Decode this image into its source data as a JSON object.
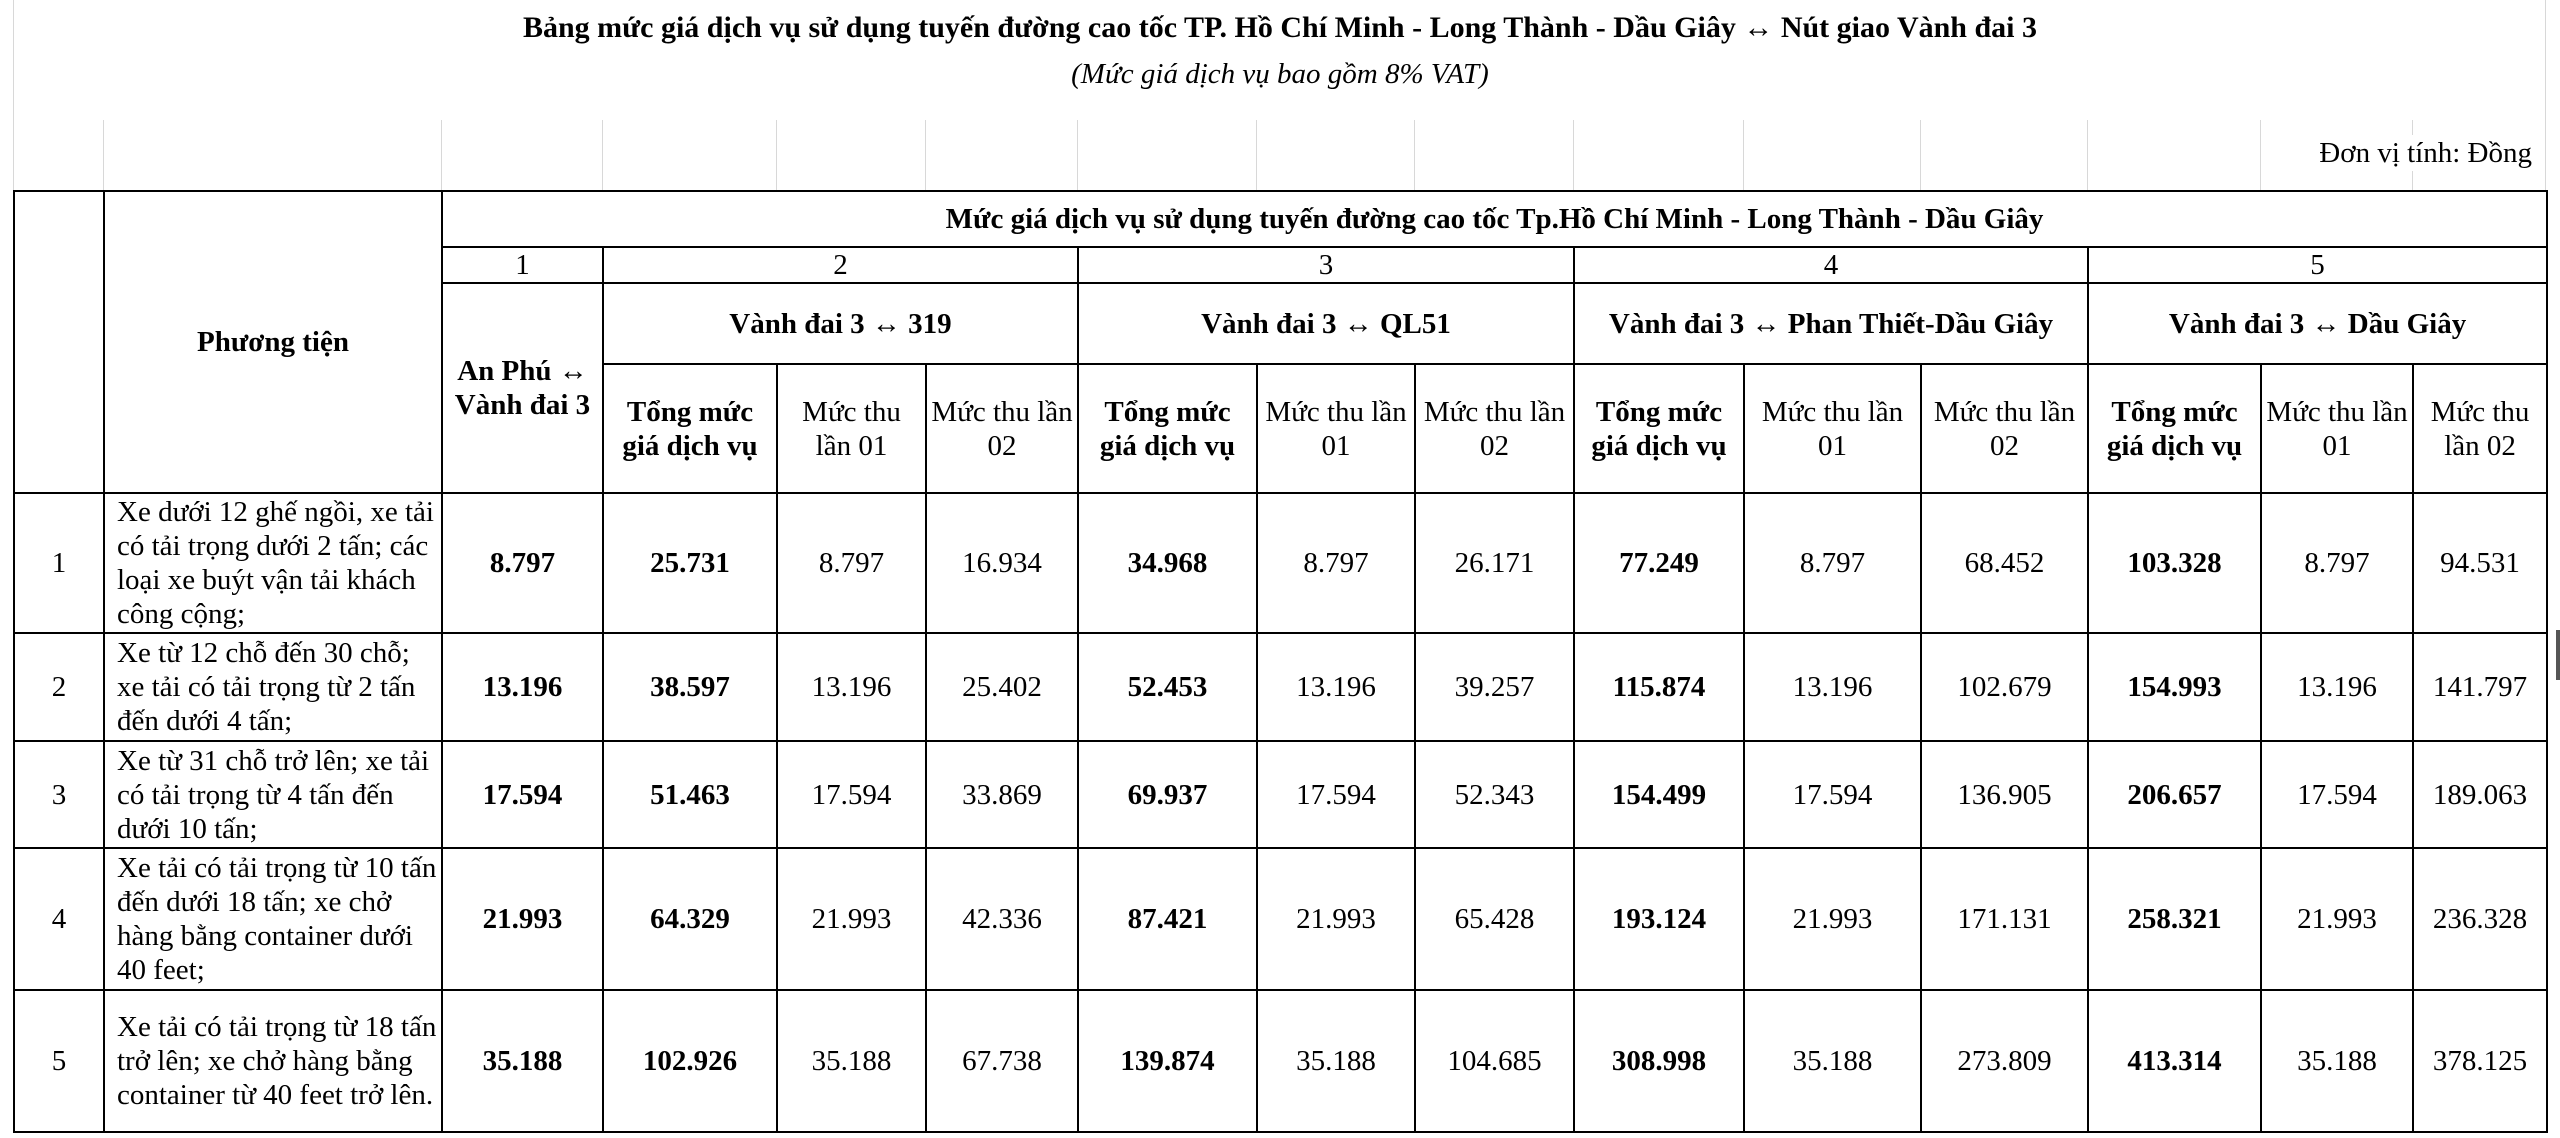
{
  "title": "Bảng mức giá dịch vụ sử dụng tuyến đường cao tốc TP. Hồ Chí Minh - Long Thành - Dầu Giây ↔ Nút giao Vành đai 3",
  "subtitle": "(Mức giá dịch vụ bao gồm 8% VAT)",
  "unit": "Đơn vị tính: Đồng",
  "table": {
    "vehicle_header": "Phương tiện",
    "group_header": "Mức giá dịch vụ sử dụng tuyến đường cao tốc Tp.Hồ Chí Minh - Long Thành - Dầu Giây",
    "section_numbers": [
      "1",
      "2",
      "3",
      "4",
      "5"
    ],
    "route1": "An Phú ↔ Vành đai 3",
    "routes": [
      "Vành đai 3 ↔ 319",
      "Vành đai 3 ↔ QL51",
      "Vành đai 3 ↔  Phan Thiết-Dầu Giây",
      "Vành đai 3 ↔ Dầu Giây"
    ],
    "sub_headers": {
      "total": "Tổng mức giá dịch vụ",
      "first": "Mức thu lần 01",
      "second": "Mức thu lần 02"
    },
    "rows": [
      {
        "no": "1",
        "vehicle": "Xe dưới 12 ghế ngồi, xe tải có tải trọng dưới 2 tấn; các loại xe buýt vận tải khách công cộng;",
        "values": [
          "8.797",
          "25.731",
          "8.797",
          "16.934",
          "34.968",
          "8.797",
          "26.171",
          "77.249",
          "8.797",
          "68.452",
          "103.328",
          "8.797",
          "94.531"
        ]
      },
      {
        "no": "2",
        "vehicle": "Xe từ 12 chỗ đến 30 chỗ; xe tải có tải trọng từ 2 tấn đến dưới 4 tấn;",
        "values": [
          "13.196",
          "38.597",
          "13.196",
          "25.402",
          "52.453",
          "13.196",
          "39.257",
          "115.874",
          "13.196",
          "102.679",
          "154.993",
          "13.196",
          "141.797"
        ]
      },
      {
        "no": "3",
        "vehicle": "Xe từ 31 chỗ trở lên; xe tải có tải trọng từ 4 tấn đến dưới 10 tấn;",
        "values": [
          "17.594",
          "51.463",
          "17.594",
          "33.869",
          "69.937",
          "17.594",
          "52.343",
          "154.499",
          "17.594",
          "136.905",
          "206.657",
          "17.594",
          "189.063"
        ]
      },
      {
        "no": "4",
        "vehicle": "Xe tải có tải trọng từ 10 tấn đến dưới 18 tấn; xe chở hàng bằng container dưới 40 feet;",
        "values": [
          "21.993",
          "64.329",
          "21.993",
          "42.336",
          "87.421",
          "21.993",
          "65.428",
          "193.124",
          "21.993",
          "171.131",
          "258.321",
          "21.993",
          "236.328"
        ]
      },
      {
        "no": "5",
        "vehicle": "Xe tải có tải trọng từ 18 tấn trở lên; xe chở hàng bằng container từ 40 feet trở lên.",
        "values": [
          "35.188",
          "102.926",
          "35.188",
          "67.738",
          "139.874",
          "35.188",
          "104.685",
          "308.998",
          "35.188",
          "273.809",
          "413.314",
          "35.188",
          "378.125"
        ]
      }
    ]
  }
}
